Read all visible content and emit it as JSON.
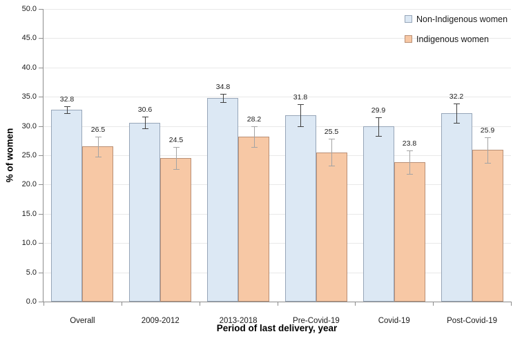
{
  "colors": {
    "non_indigenous_fill": "#dce8f4",
    "non_indigenous_border": "#96a5b8",
    "non_indigenous_error": "#3f3f3f",
    "indigenous_fill": "#f7c8a5",
    "indigenous_border": "#b98f75",
    "indigenous_error": "#a3a3a3",
    "gridline": "#e8e8e8",
    "axis": "#8c8c8c",
    "text": "#1a1a1a"
  },
  "chart_data": {
    "type": "bar",
    "title": "",
    "xlabel": "Period of last delivery, year",
    "ylabel": "% of women",
    "categories": [
      "Overall",
      "2009-2012",
      "2013-2018",
      "Pre-Covid-19",
      "Covid-19",
      "Post-Covid-19"
    ],
    "series": [
      {
        "name": "Non-Indigenous women",
        "values": [
          32.8,
          30.6,
          34.8,
          31.8,
          29.9,
          32.2
        ],
        "errors": [
          0.6,
          1.0,
          0.7,
          1.9,
          1.6,
          1.7
        ]
      },
      {
        "name": "Indigenous women",
        "values": [
          26.5,
          24.5,
          28.2,
          25.5,
          23.8,
          25.9
        ],
        "errors": [
          1.7,
          1.9,
          1.8,
          2.3,
          2.0,
          2.2
        ]
      }
    ],
    "data_labels_shown": true,
    "error_bars_shown": true,
    "ylim": [
      0,
      50
    ],
    "ytick_step": 5,
    "ytick_labels": [
      "0.0",
      "5.0",
      "10.0",
      "15.0",
      "20.0",
      "25.0",
      "30.0",
      "35.0",
      "40.0",
      "45.0",
      "50.0"
    ],
    "grid": true,
    "legend_position": "top-right"
  }
}
